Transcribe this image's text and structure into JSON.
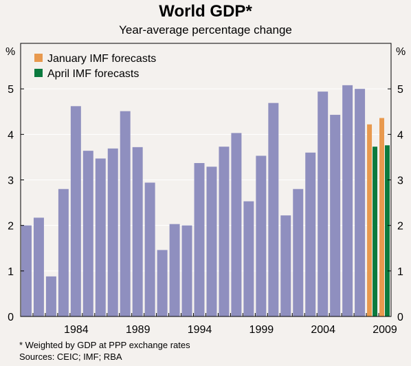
{
  "title": "World GDP*",
  "subtitle": "Year-average percentage change",
  "footnotes": {
    "note": "*  Weighted by GDP at PPP exchange rates",
    "sources": "Sources: CEIC; IMF; RBA"
  },
  "colors": {
    "background": "#f4f1ee",
    "history_bar": "#8f8fbf",
    "january_forecast": "#e8994e",
    "april_forecast": "#0b7a3e",
    "gridline": "#ffffff",
    "axis": "#000000"
  },
  "chart_data": {
    "type": "bar",
    "title": "World GDP*",
    "subtitle": "Year-average percentage change",
    "y_unit_label_left": "%",
    "y_unit_label_right": "%",
    "ylim": [
      0,
      6
    ],
    "y_ticks": [
      0,
      1,
      2,
      3,
      4,
      5
    ],
    "x_tick_labels": [
      "1984",
      "1989",
      "1994",
      "1999",
      "2004",
      "2009"
    ],
    "grid": true,
    "legend_position": "top-left",
    "legend": [
      {
        "name": "January IMF forecasts",
        "color": "#e8994e"
      },
      {
        "name": "April IMF forecasts",
        "color": "#0b7a3e"
      }
    ],
    "history": {
      "years": [
        1980,
        1981,
        1982,
        1983,
        1984,
        1985,
        1986,
        1987,
        1988,
        1989,
        1990,
        1991,
        1992,
        1993,
        1994,
        1995,
        1996,
        1997,
        1998,
        1999,
        2000,
        2001,
        2002,
        2003,
        2004,
        2005,
        2006,
        2007
      ],
      "values": [
        2.0,
        2.17,
        0.88,
        2.8,
        4.62,
        3.64,
        3.47,
        3.69,
        4.51,
        3.72,
        2.94,
        1.46,
        2.03,
        2.0,
        3.37,
        3.29,
        3.73,
        4.03,
        2.53,
        3.53,
        4.69,
        2.22,
        2.8,
        3.6,
        4.94,
        4.43,
        5.08,
        5.0
      ]
    },
    "series": [
      {
        "name": "January IMF forecasts",
        "years": [
          2008,
          2009
        ],
        "values": [
          4.22,
          4.36
        ]
      },
      {
        "name": "April IMF forecasts",
        "years": [
          2008,
          2009
        ],
        "values": [
          3.73,
          3.76
        ]
      }
    ]
  }
}
